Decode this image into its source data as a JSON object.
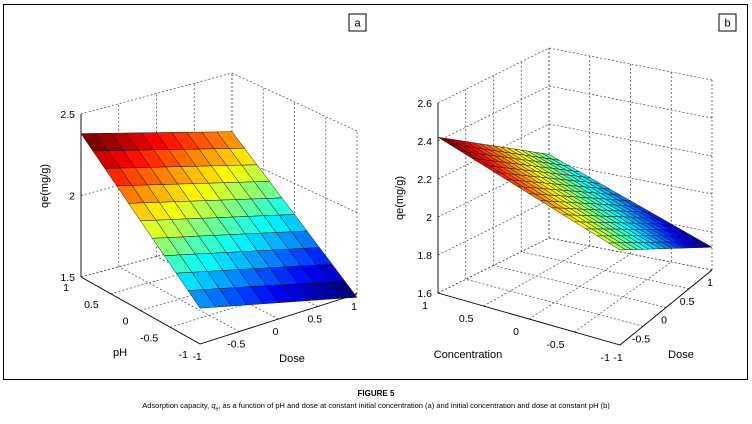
{
  "caption": {
    "title": "FIGURE 5",
    "prefix": "Adsorption capacity, ",
    "symbol": "q",
    "subscript": "e",
    "suffix": ", as a function of pH and dose at constant initial concentration (a) and initial concentration and dose at constant pH (b)"
  },
  "colors": {
    "frame": "#000000",
    "grid": "#444444",
    "mesh": "#1a1a1a",
    "colormap": "jet"
  },
  "chart_data": [
    {
      "type": "surface",
      "panel_label": "a",
      "zlabel": "qe(mg/g)",
      "xlabel": "Dose",
      "ylabel": "pH",
      "xlim": [
        -1,
        1
      ],
      "ylim": [
        -1,
        1
      ],
      "zlim": [
        1.5,
        2.5
      ],
      "x_ticks": [
        {
          "v": -1,
          "t": "-1"
        },
        {
          "v": -0.5,
          "t": "-0.5"
        },
        {
          "v": 0,
          "t": "0"
        },
        {
          "v": 0.5,
          "t": "0.5"
        },
        {
          "v": 1,
          "t": "1"
        }
      ],
      "y_ticks": [
        {
          "v": 1,
          "t": "1"
        },
        {
          "v": 0.5,
          "t": "0.5"
        },
        {
          "v": 0,
          "t": "0"
        },
        {
          "v": -0.5,
          "t": "-0.5"
        },
        {
          "v": -1,
          "t": "-1"
        }
      ],
      "z_ticks": [
        {
          "v": 2.5,
          "t": "2.5"
        },
        {
          "v": 2,
          "t": "2"
        },
        {
          "v": 1.5,
          "t": "1.5"
        }
      ],
      "grid": true,
      "mesh_size": 10,
      "surface_model": {
        "intercept": 1.93,
        "x_coef": -0.12,
        "y_coef": 0.33,
        "xy_coef": 0.0
      },
      "corner_values": {
        "dose_-1_ph_1": 2.38,
        "dose_1_ph_1": 2.14,
        "dose_-1_ph_-1": 1.72,
        "dose_1_ph_-1": 1.48
      }
    },
    {
      "type": "surface",
      "panel_label": "b",
      "zlabel": "qe(mg/g)",
      "xlabel": "Dose",
      "ylabel": "Concentration",
      "xlim": [
        -1,
        1
      ],
      "ylim": [
        -1,
        1
      ],
      "zlim": [
        1.6,
        2.6
      ],
      "x_ticks": [
        {
          "v": -1,
          "t": "-1"
        },
        {
          "v": -0.5,
          "t": "-0.5"
        },
        {
          "v": 0,
          "t": "0"
        },
        {
          "v": 0.5,
          "t": "0.5"
        },
        {
          "v": 1,
          "t": "1"
        }
      ],
      "y_ticks": [
        {
          "v": 1,
          "t": "1"
        },
        {
          "v": 0.5,
          "t": "0.5"
        },
        {
          "v": 0,
          "t": "0"
        },
        {
          "v": -0.5,
          "t": "-0.5"
        },
        {
          "v": -1,
          "t": "-1"
        }
      ],
      "z_ticks": [
        {
          "v": 2.6,
          "t": "2.6"
        },
        {
          "v": 2.4,
          "t": "2.4"
        },
        {
          "v": 2.2,
          "t": "2.2"
        },
        {
          "v": 2,
          "t": "2"
        },
        {
          "v": 1.8,
          "t": "1.8"
        },
        {
          "v": 1.6,
          "t": "1.6"
        }
      ],
      "grid": true,
      "mesh_size": 16,
      "surface_model": {
        "intercept": 2.07,
        "x_coef": -0.19,
        "y_coef": 0.16,
        "xy_coef": 0.0
      },
      "corner_values": {
        "dose_-1_conc_1": 2.42,
        "dose_1_conc_1": 2.04,
        "dose_-1_conc_-1": 2.1,
        "dose_1_conc_-1": 1.72
      }
    }
  ]
}
